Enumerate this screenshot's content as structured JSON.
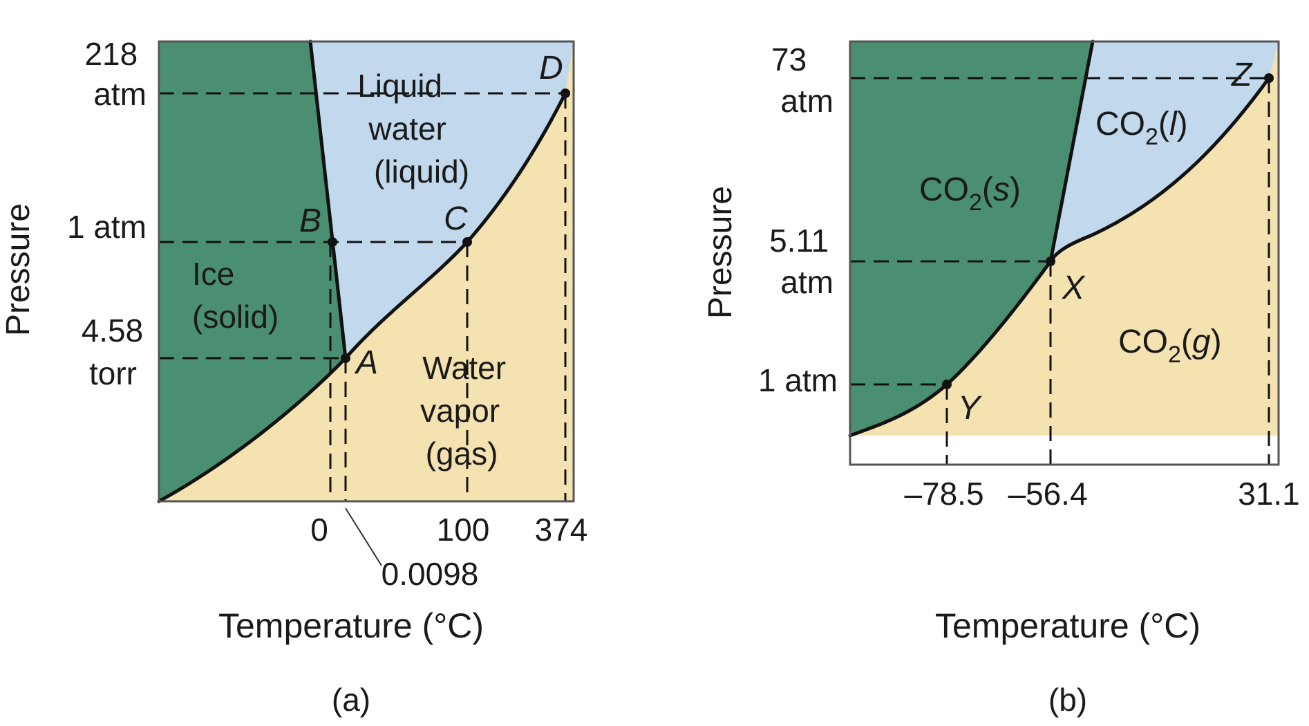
{
  "colors": {
    "solid": "#4b8f73",
    "liquid": "#c2d8ec",
    "gas": "#f4e2b0",
    "line": "#111111"
  },
  "panel_a": {
    "ylabel": "Pressure",
    "xlabel": "Temperature (°C)",
    "caption": "(a)",
    "y_ticks": {
      "p218": [
        "218",
        "atm"
      ],
      "p1atm": "1 atm",
      "p458": [
        "4.58",
        "torr"
      ]
    },
    "x_ticks": {
      "t0": "0",
      "t100": "100",
      "t374": "374",
      "t00098": "0.0098"
    },
    "regions": {
      "liquid": [
        "Liquid",
        "water",
        "(liquid)"
      ],
      "solid": [
        "Ice",
        "(solid)"
      ],
      "gas": [
        "Water",
        "vapor",
        "(gas)"
      ]
    },
    "points": {
      "A": "A",
      "B": "B",
      "C": "C",
      "D": "D"
    }
  },
  "panel_b": {
    "ylabel": "Pressure",
    "xlabel": "Temperature (°C)",
    "caption": "(b)",
    "y_ticks": {
      "p73": [
        "73",
        "atm"
      ],
      "p511": [
        "5.11",
        "atm"
      ],
      "p1atm": "1 atm"
    },
    "x_ticks": {
      "t785": "–78.5",
      "t564": "–56.4",
      "t311": "31.1"
    },
    "regions": {
      "solid": {
        "base": "CO",
        "sub": "2",
        "open": "(",
        "state": "s",
        "close": ")"
      },
      "liquid": {
        "base": "CO",
        "sub": "2",
        "open": "(",
        "state": "l",
        "close": ")"
      },
      "gas": {
        "base": "CO",
        "sub": "2",
        "open": "(",
        "state": "g",
        "close": ")"
      }
    },
    "points": {
      "X": "X",
      "Y": "Y",
      "Z": "Z"
    }
  }
}
